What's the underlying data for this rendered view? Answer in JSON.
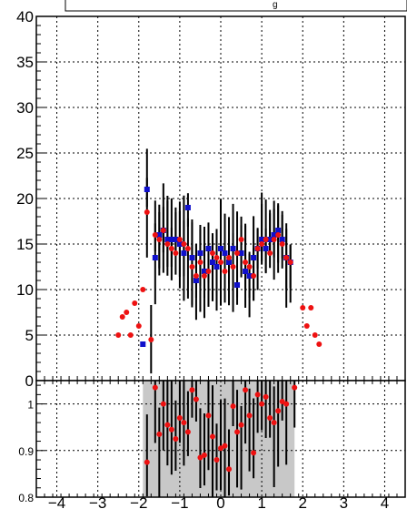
{
  "legend": {
    "entry": "g"
  },
  "chart_data": [
    {
      "type": "scatter",
      "panel": "main",
      "xlim": [
        -4.5,
        4.5
      ],
      "ylim": [
        0,
        40
      ],
      "x_ticks": [
        "−4",
        "−3",
        "−2",
        "−1",
        "0",
        "1",
        "2",
        "3",
        "4"
      ],
      "x_tick_values": [
        -4,
        -3,
        -2,
        -1,
        0,
        1,
        2,
        3,
        4
      ],
      "y_ticks": [
        "0",
        "5",
        "10",
        "15",
        "20",
        "25",
        "30",
        "35",
        "40"
      ],
      "y_tick_values": [
        0,
        5,
        10,
        15,
        20,
        25,
        30,
        35,
        40
      ],
      "grid": true,
      "series": [
        {
          "color": "#1010cc",
          "marker": "square",
          "points": [
            {
              "x": -1.9,
              "y": 4.0
            },
            {
              "x": -1.8,
              "y": 21.0
            },
            {
              "x": -1.6,
              "y": 13.5
            },
            {
              "x": -1.5,
              "y": 16.0
            },
            {
              "x": -1.4,
              "y": 16.5
            },
            {
              "x": -1.3,
              "y": 15.5
            },
            {
              "x": -1.2,
              "y": 15.5
            },
            {
              "x": -1.1,
              "y": 15.5
            },
            {
              "x": -1.0,
              "y": 15.0
            },
            {
              "x": -0.9,
              "y": 14.0
            },
            {
              "x": -0.8,
              "y": 19.0
            },
            {
              "x": -0.7,
              "y": 13.5
            },
            {
              "x": -0.6,
              "y": 11.0
            },
            {
              "x": -0.5,
              "y": 14.0
            },
            {
              "x": -0.4,
              "y": 12.0
            },
            {
              "x": -0.3,
              "y": 14.5
            },
            {
              "x": -0.2,
              "y": 13.0
            },
            {
              "x": -0.1,
              "y": 12.5
            },
            {
              "x": 0.0,
              "y": 14.5
            },
            {
              "x": 0.1,
              "y": 14.0
            },
            {
              "x": 0.2,
              "y": 13.0
            },
            {
              "x": 0.3,
              "y": 14.5
            },
            {
              "x": 0.4,
              "y": 10.5
            },
            {
              "x": 0.5,
              "y": 14.0
            },
            {
              "x": 0.6,
              "y": 12.0
            },
            {
              "x": 0.7,
              "y": 11.5
            },
            {
              "x": 0.8,
              "y": 13.5
            },
            {
              "x": 0.9,
              "y": 14.5
            },
            {
              "x": 1.0,
              "y": 15.5
            },
            {
              "x": 1.1,
              "y": 14.5
            },
            {
              "x": 1.2,
              "y": 15.5
            },
            {
              "x": 1.3,
              "y": 16.0
            },
            {
              "x": 1.4,
              "y": 16.5
            },
            {
              "x": 1.5,
              "y": 15.5
            },
            {
              "x": 1.6,
              "y": 13.5
            },
            {
              "x": 1.7,
              "y": 13.0
            }
          ]
        },
        {
          "color": "#ee1111",
          "marker": "circle",
          "points": [
            {
              "x": -2.5,
              "y": 5.0
            },
            {
              "x": -2.4,
              "y": 7.0
            },
            {
              "x": -2.3,
              "y": 7.5
            },
            {
              "x": -2.2,
              "y": 5.0
            },
            {
              "x": -2.1,
              "y": 8.5
            },
            {
              "x": -2.0,
              "y": 6.0
            },
            {
              "x": -1.9,
              "y": 10.0
            },
            {
              "x": -1.8,
              "y": 18.5
            },
            {
              "x": -1.7,
              "y": 4.5
            },
            {
              "x": -1.6,
              "y": 16.0
            },
            {
              "x": -1.5,
              "y": 15.5
            },
            {
              "x": -1.4,
              "y": 16.5
            },
            {
              "x": -1.3,
              "y": 15.0
            },
            {
              "x": -1.2,
              "y": 14.5
            },
            {
              "x": -1.1,
              "y": 14.0
            },
            {
              "x": -1.0,
              "y": 15.5
            },
            {
              "x": -0.9,
              "y": 15.0
            },
            {
              "x": -0.8,
              "y": 14.5
            },
            {
              "x": -0.7,
              "y": 12.5
            },
            {
              "x": -0.6,
              "y": 11.5
            },
            {
              "x": -0.5,
              "y": 13.0
            },
            {
              "x": -0.4,
              "y": 11.5
            },
            {
              "x": -0.3,
              "y": 12.0
            },
            {
              "x": -0.2,
              "y": 14.0
            },
            {
              "x": -0.1,
              "y": 13.5
            },
            {
              "x": 0.0,
              "y": 13.0
            },
            {
              "x": 0.1,
              "y": 12.0
            },
            {
              "x": 0.2,
              "y": 13.5
            },
            {
              "x": 0.3,
              "y": 12.5
            },
            {
              "x": 0.4,
              "y": 14.0
            },
            {
              "x": 0.5,
              "y": 15.5
            },
            {
              "x": 0.6,
              "y": 13.0
            },
            {
              "x": 0.7,
              "y": 12.5
            },
            {
              "x": 0.8,
              "y": 11.5
            },
            {
              "x": 0.9,
              "y": 14.5
            },
            {
              "x": 1.0,
              "y": 15.0
            },
            {
              "x": 1.1,
              "y": 15.5
            },
            {
              "x": 1.2,
              "y": 14.0
            },
            {
              "x": 1.3,
              "y": 15.5
            },
            {
              "x": 1.4,
              "y": 16.0
            },
            {
              "x": 1.5,
              "y": 15.0
            },
            {
              "x": 1.6,
              "y": 13.5
            },
            {
              "x": 1.7,
              "y": 13.0
            },
            {
              "x": 2.0,
              "y": 8.0
            },
            {
              "x": 2.1,
              "y": 6.0
            },
            {
              "x": 2.2,
              "y": 8.0
            },
            {
              "x": 2.3,
              "y": 5.0
            },
            {
              "x": 2.4,
              "y": 4.0
            }
          ]
        }
      ]
    },
    {
      "type": "scatter",
      "panel": "ratio",
      "xlim": [
        -4.5,
        4.5
      ],
      "ylim": [
        0.8,
        1.05
      ],
      "y_ticks": [
        "0.8",
        "0.9",
        "1"
      ],
      "y_tick_values": [
        0.8,
        0.9,
        1.0
      ],
      "grid": true,
      "band": {
        "color": "#c8c8c8",
        "x_range": [
          -1.9,
          1.8
        ],
        "lower": 0.8,
        "upper": 1.05
      },
      "series": [
        {
          "color": "#ee1111",
          "marker": "circle",
          "points": [
            {
              "x": -1.8,
              "y": 0.875
            },
            {
              "x": -1.6,
              "y": 1.035
            },
            {
              "x": -1.5,
              "y": 0.935
            },
            {
              "x": -1.4,
              "y": 1.0
            },
            {
              "x": -1.3,
              "y": 0.955
            },
            {
              "x": -1.2,
              "y": 0.945
            },
            {
              "x": -1.1,
              "y": 0.925
            },
            {
              "x": -1.0,
              "y": 0.97
            },
            {
              "x": -0.9,
              "y": 0.96
            },
            {
              "x": -0.8,
              "y": 0.94
            },
            {
              "x": -0.7,
              "y": 1.03
            },
            {
              "x": -0.6,
              "y": 1.01
            },
            {
              "x": -0.5,
              "y": 0.885
            },
            {
              "x": -0.4,
              "y": 0.89
            },
            {
              "x": -0.3,
              "y": 0.975
            },
            {
              "x": -0.2,
              "y": 0.93
            },
            {
              "x": -0.1,
              "y": 0.88
            },
            {
              "x": 0.0,
              "y": 0.905
            },
            {
              "x": 0.1,
              "y": 0.91
            },
            {
              "x": 0.2,
              "y": 0.86
            },
            {
              "x": 0.3,
              "y": 0.995
            },
            {
              "x": 0.4,
              "y": 0.94
            },
            {
              "x": 0.5,
              "y": 0.955
            },
            {
              "x": 0.6,
              "y": 1.03
            },
            {
              "x": 0.7,
              "y": 0.975
            },
            {
              "x": 0.8,
              "y": 0.895
            },
            {
              "x": 0.9,
              "y": 1.02
            },
            {
              "x": 1.0,
              "y": 1.0
            },
            {
              "x": 1.1,
              "y": 1.015
            },
            {
              "x": 1.2,
              "y": 0.97
            },
            {
              "x": 1.3,
              "y": 0.96
            },
            {
              "x": 1.4,
              "y": 0.985
            },
            {
              "x": 1.5,
              "y": 1.005
            },
            {
              "x": 1.6,
              "y": 1.0
            },
            {
              "x": 1.8,
              "y": 1.035
            }
          ]
        }
      ]
    }
  ]
}
